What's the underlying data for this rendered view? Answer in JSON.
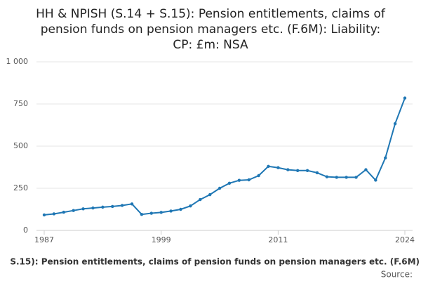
{
  "chart_data": {
    "type": "line",
    "title": [
      "HH & NPISH (S.14 + S.15): Pension entitlements, claims of",
      "pension funds on pension managers etc. (F.6M): Liability:",
      "CP: £m: NSA"
    ],
    "footer": "S.15): Pension entitlements, claims of pension funds on pension managers etc. (F.6M)",
    "source": "Source:",
    "x": [
      1987,
      1988,
      1989,
      1990,
      1991,
      1992,
      1993,
      1994,
      1995,
      1996,
      1997,
      1998,
      1999,
      2000,
      2001,
      2002,
      2003,
      2004,
      2005,
      2006,
      2007,
      2008,
      2009,
      2010,
      2011,
      2012,
      2013,
      2014,
      2015,
      2016,
      2017,
      2018,
      2019,
      2020,
      2021,
      2022,
      2023,
      2024
    ],
    "series": [
      {
        "color": "#1f77b4",
        "values": [
          92,
          98,
          108,
          118,
          128,
          133,
          138,
          142,
          148,
          157,
          95,
          102,
          107,
          115,
          125,
          145,
          183,
          212,
          250,
          280,
          297,
          300,
          325,
          380,
          372,
          360,
          355,
          355,
          342,
          318,
          315,
          315,
          315,
          360,
          298,
          430,
          633,
          785
        ]
      }
    ],
    "xlim": [
      1987,
      2024
    ],
    "xticks": [
      1987,
      1999,
      2011,
      2024
    ],
    "ylim": [
      0,
      1000
    ],
    "yticks": [
      0,
      250,
      500,
      750,
      {
        "value": 1000,
        "label": "1 000"
      }
    ],
    "grid": true
  }
}
